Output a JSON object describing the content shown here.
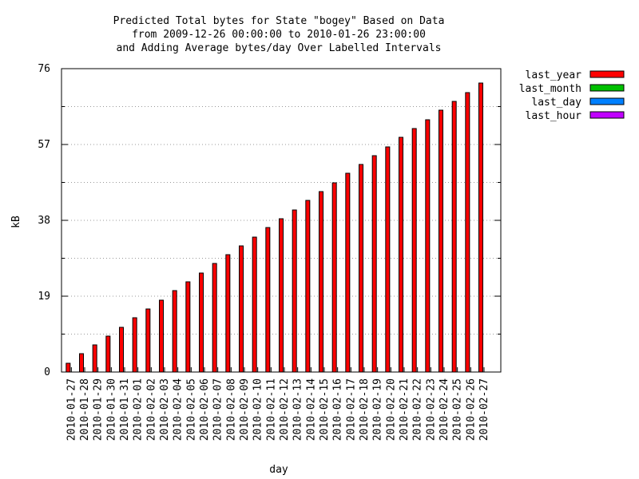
{
  "chart_data": {
    "type": "bar",
    "title": [
      "Predicted Total bytes for State \"bogey\" Based on Data",
      "from 2009-12-26 00:00:00 to 2010-01-26 23:00:00",
      "and Adding Average bytes/day Over Labelled Intervals"
    ],
    "xlabel": "day",
    "ylabel": "kB",
    "categories": [
      "2010-01-27",
      "2010-01-28",
      "2010-01-29",
      "2010-01-30",
      "2010-01-31",
      "2010-02-01",
      "2010-02-02",
      "2010-02-03",
      "2010-02-04",
      "2010-02-05",
      "2010-02-06",
      "2010-02-07",
      "2010-02-08",
      "2010-02-09",
      "2010-02-10",
      "2010-02-11",
      "2010-02-12",
      "2010-02-13",
      "2010-02-14",
      "2010-02-15",
      "2010-02-16",
      "2010-02-17",
      "2010-02-18",
      "2010-02-19",
      "2010-02-20",
      "2010-02-21",
      "2010-02-22",
      "2010-02-23",
      "2010-02-24",
      "2010-02-25",
      "2010-02-26",
      "2010-02-27"
    ],
    "series": [
      {
        "name": "last_year",
        "color": "#ff0000",
        "values": [
          2.2,
          4.6,
          6.8,
          9.0,
          11.2,
          13.6,
          15.8,
          18.0,
          20.4,
          22.6,
          24.8,
          27.2,
          29.4,
          31.6,
          33.8,
          36.2,
          38.4,
          40.6,
          43.0,
          45.2,
          47.4,
          49.8,
          52.0,
          54.2,
          56.4,
          58.8,
          61.0,
          63.2,
          65.6,
          67.8,
          70.0,
          72.4
        ]
      },
      {
        "name": "last_month",
        "color": "#00c000"
      },
      {
        "name": "last_day",
        "color": "#0080ff"
      },
      {
        "name": "last_hour",
        "color": "#c000ff"
      }
    ],
    "ylim": [
      0,
      76
    ],
    "yticks": [
      0,
      19,
      38,
      57,
      76
    ],
    "grid": true,
    "legend": "outside-right"
  }
}
